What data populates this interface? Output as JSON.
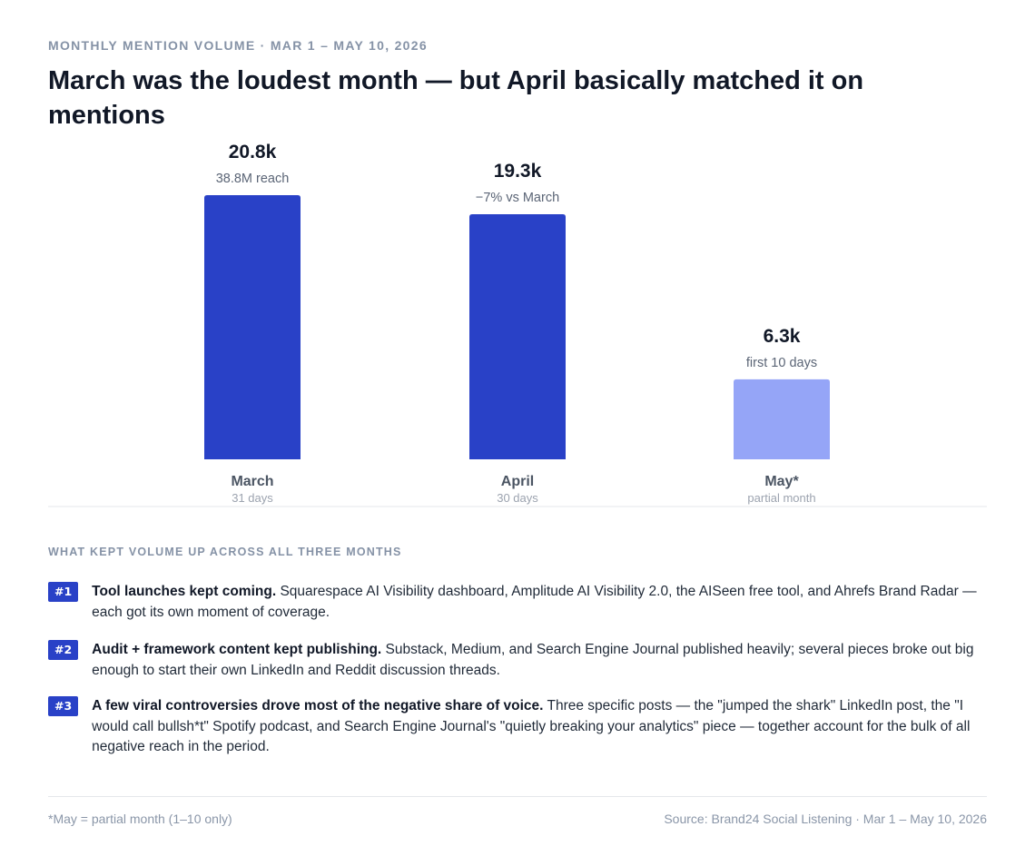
{
  "eyebrow": "MONTHLY MENTION VOLUME · MAR 1 – MAY 10, 2026",
  "headline": "March was the loudest month — but April basically matched it on mentions",
  "colors": {
    "bar_full": "#2941c7",
    "bar_partial": "#95a5f7",
    "badge": "#2941c7"
  },
  "chart_data": {
    "type": "bar",
    "title": "March was the loudest month — but April basically matched it on mentions",
    "ylabel": "",
    "xlabel": "",
    "unit": "k mentions",
    "categories": [
      "March",
      "April",
      "May*"
    ],
    "values": [
      20.8,
      19.3,
      6.3
    ],
    "value_labels": [
      "20.8k",
      "19.3k",
      "6.3k"
    ],
    "annotations": [
      "38.8M reach",
      "−7% vs March",
      "first 10 days"
    ],
    "sublabels": [
      "31 days",
      "30 days",
      "partial month"
    ],
    "partial": [
      false,
      false,
      true
    ],
    "ylim": [
      0,
      20.8
    ],
    "grid": false,
    "legend": "none"
  },
  "drivers": {
    "label": "WHAT KEPT VOLUME UP ACROSS ALL THREE MONTHS",
    "items": [
      {
        "badge": "#1",
        "lead": "Tool launches kept coming.",
        "text": " Squarespace AI Visibility dashboard, Amplitude AI Visibility 2.0, the AISeen free tool, and Ahrefs Brand Radar — each got its own moment of coverage."
      },
      {
        "badge": "#2",
        "lead": "Audit + framework content kept publishing.",
        "text": " Substack, Medium, and Search Engine Journal published heavily; several pieces broke out big enough to start their own LinkedIn and Reddit discussion threads."
      },
      {
        "badge": "#3",
        "lead": "A few viral controversies drove most of the negative share of voice.",
        "text": " Three specific posts — the \"jumped the shark\" LinkedIn post, the \"I would call bullsh*t\" Spotify podcast, and Search Engine Journal's \"quietly breaking your analytics\" piece — together account for the bulk of all negative reach in the period."
      }
    ]
  },
  "footer": {
    "note": "*May = partial month (1–10 only)",
    "source": "Source: Brand24 Social Listening · Mar 1 – May 10, 2026"
  }
}
